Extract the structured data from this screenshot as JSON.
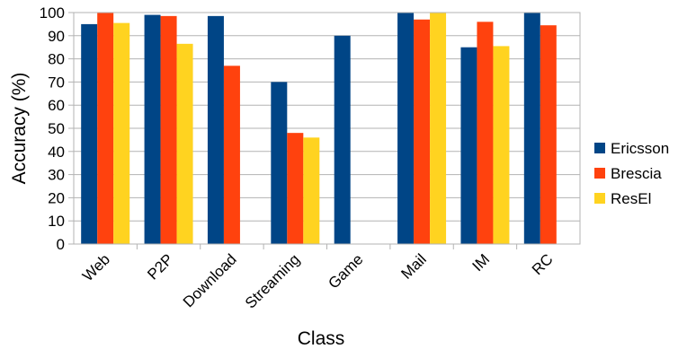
{
  "chart_data": {
    "type": "bar",
    "title": "",
    "xlabel": "Class",
    "ylabel": "Accuracy (%)",
    "ylim": [
      0,
      100
    ],
    "yticks": [
      0,
      10,
      20,
      30,
      40,
      50,
      60,
      70,
      80,
      90,
      100
    ],
    "grid": true,
    "legend_position": "right",
    "categories": [
      "Web",
      "P2P",
      "Download",
      "Streaming",
      "Game",
      "Mail",
      "IM",
      "RC"
    ],
    "series": [
      {
        "name": "Ericsson",
        "color": "#004586",
        "values": [
          95,
          99,
          98.5,
          70,
          90,
          100,
          85,
          100
        ]
      },
      {
        "name": "Brescia",
        "color": "#ff420e",
        "values": [
          100,
          98.5,
          77,
          48,
          null,
          97,
          96,
          94.5
        ]
      },
      {
        "name": "ResEl",
        "color": "#ffd320",
        "values": [
          95.5,
          86.5,
          null,
          46,
          null,
          100,
          85.5,
          null
        ]
      }
    ]
  }
}
